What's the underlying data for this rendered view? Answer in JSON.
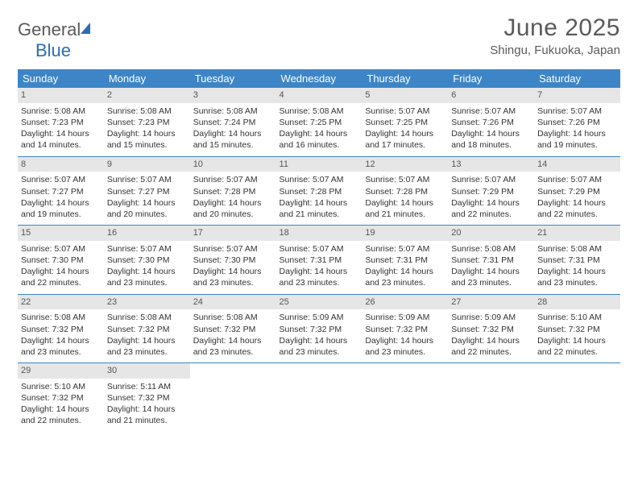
{
  "brand": {
    "name1": "General",
    "name2": "Blue"
  },
  "title": "June 2025",
  "location": "Shingu, Fukuoka, Japan",
  "dow_bg": "#3d85c6",
  "dow_fg": "#ffffff",
  "daynum_bg": "#e6e6e6",
  "dows": [
    "Sunday",
    "Monday",
    "Tuesday",
    "Wednesday",
    "Thursday",
    "Friday",
    "Saturday"
  ],
  "days": {
    "1": {
      "sr": "5:08 AM",
      "ss": "7:23 PM",
      "dh": 14,
      "dm": 14
    },
    "2": {
      "sr": "5:08 AM",
      "ss": "7:23 PM",
      "dh": 14,
      "dm": 15
    },
    "3": {
      "sr": "5:08 AM",
      "ss": "7:24 PM",
      "dh": 14,
      "dm": 15
    },
    "4": {
      "sr": "5:08 AM",
      "ss": "7:25 PM",
      "dh": 14,
      "dm": 16
    },
    "5": {
      "sr": "5:07 AM",
      "ss": "7:25 PM",
      "dh": 14,
      "dm": 17
    },
    "6": {
      "sr": "5:07 AM",
      "ss": "7:26 PM",
      "dh": 14,
      "dm": 18
    },
    "7": {
      "sr": "5:07 AM",
      "ss": "7:26 PM",
      "dh": 14,
      "dm": 19
    },
    "8": {
      "sr": "5:07 AM",
      "ss": "7:27 PM",
      "dh": 14,
      "dm": 19
    },
    "9": {
      "sr": "5:07 AM",
      "ss": "7:27 PM",
      "dh": 14,
      "dm": 20
    },
    "10": {
      "sr": "5:07 AM",
      "ss": "7:28 PM",
      "dh": 14,
      "dm": 20
    },
    "11": {
      "sr": "5:07 AM",
      "ss": "7:28 PM",
      "dh": 14,
      "dm": 21
    },
    "12": {
      "sr": "5:07 AM",
      "ss": "7:28 PM",
      "dh": 14,
      "dm": 21
    },
    "13": {
      "sr": "5:07 AM",
      "ss": "7:29 PM",
      "dh": 14,
      "dm": 22
    },
    "14": {
      "sr": "5:07 AM",
      "ss": "7:29 PM",
      "dh": 14,
      "dm": 22
    },
    "15": {
      "sr": "5:07 AM",
      "ss": "7:30 PM",
      "dh": 14,
      "dm": 22
    },
    "16": {
      "sr": "5:07 AM",
      "ss": "7:30 PM",
      "dh": 14,
      "dm": 23
    },
    "17": {
      "sr": "5:07 AM",
      "ss": "7:30 PM",
      "dh": 14,
      "dm": 23
    },
    "18": {
      "sr": "5:07 AM",
      "ss": "7:31 PM",
      "dh": 14,
      "dm": 23
    },
    "19": {
      "sr": "5:07 AM",
      "ss": "7:31 PM",
      "dh": 14,
      "dm": 23
    },
    "20": {
      "sr": "5:08 AM",
      "ss": "7:31 PM",
      "dh": 14,
      "dm": 23
    },
    "21": {
      "sr": "5:08 AM",
      "ss": "7:31 PM",
      "dh": 14,
      "dm": 23
    },
    "22": {
      "sr": "5:08 AM",
      "ss": "7:32 PM",
      "dh": 14,
      "dm": 23
    },
    "23": {
      "sr": "5:08 AM",
      "ss": "7:32 PM",
      "dh": 14,
      "dm": 23
    },
    "24": {
      "sr": "5:08 AM",
      "ss": "7:32 PM",
      "dh": 14,
      "dm": 23
    },
    "25": {
      "sr": "5:09 AM",
      "ss": "7:32 PM",
      "dh": 14,
      "dm": 23
    },
    "26": {
      "sr": "5:09 AM",
      "ss": "7:32 PM",
      "dh": 14,
      "dm": 23
    },
    "27": {
      "sr": "5:09 AM",
      "ss": "7:32 PM",
      "dh": 14,
      "dm": 22
    },
    "28": {
      "sr": "5:10 AM",
      "ss": "7:32 PM",
      "dh": 14,
      "dm": 22
    },
    "29": {
      "sr": "5:10 AM",
      "ss": "7:32 PM",
      "dh": 14,
      "dm": 22
    },
    "30": {
      "sr": "5:11 AM",
      "ss": "7:32 PM",
      "dh": 14,
      "dm": 21
    }
  },
  "labels": {
    "sunrise": "Sunrise:",
    "sunset": "Sunset:",
    "daylight": "Daylight:",
    "hours": "hours",
    "and": "and",
    "minutes": "minutes."
  }
}
